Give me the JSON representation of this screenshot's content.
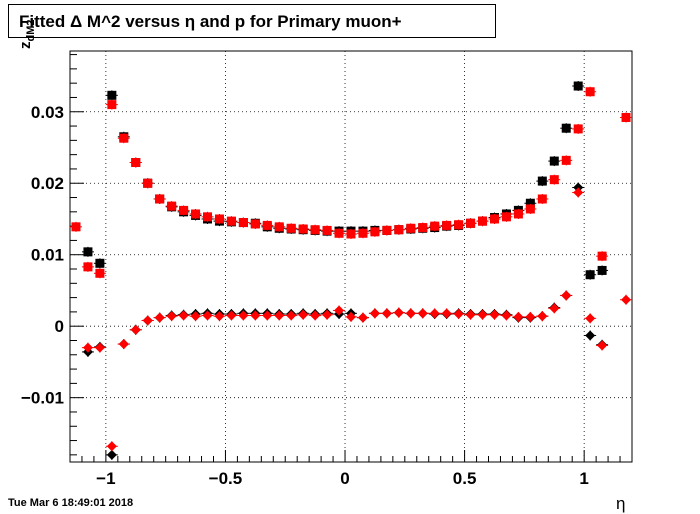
{
  "header": {
    "title": "Fitted Δ M^2 versus η and p for Primary muon+"
  },
  "footer": {
    "timestamp": "Tue Mar  6 18:49:01 2018"
  },
  "colors": {
    "series_black": "#000000",
    "series_red": "#ff0000",
    "grid": "#000000"
  },
  "chart_data": {
    "type": "scatter",
    "title": "Fitted Δ M^2 versus η and p for Primary muon+",
    "xlabel": "η",
    "ylabel_main": "z",
    "ylabel_sub": "dM2",
    "xlim": [
      -1.15,
      1.2
    ],
    "ylim": [
      -0.019,
      0.0385
    ],
    "grid": true,
    "x_ticks": [
      -1,
      -0.5,
      0,
      0.5,
      1
    ],
    "x_tick_labels": [
      "−1",
      "−0.5",
      "0",
      "0.5",
      "1"
    ],
    "y_ticks": [
      -0.01,
      0,
      0.01,
      0.02,
      0.03
    ],
    "y_tick_labels": [
      "−0.01",
      "0",
      "0.01",
      "0.02",
      "0.03"
    ],
    "series": [
      {
        "marker": "square",
        "color": "#000000",
        "x": [
          -1.075,
          -1.025,
          -0.975,
          -0.925,
          -0.875,
          -0.825,
          -0.775,
          -0.725,
          -0.675,
          -0.625,
          -0.575,
          -0.525,
          -0.475,
          -0.425,
          -0.375,
          -0.325,
          -0.275,
          -0.225,
          -0.175,
          -0.125,
          -0.075,
          -0.025,
          0.025,
          0.075,
          0.125,
          0.175,
          0.225,
          0.275,
          0.325,
          0.375,
          0.425,
          0.475,
          0.525,
          0.575,
          0.625,
          0.675,
          0.725,
          0.775,
          0.825,
          0.875,
          0.925,
          0.975,
          1.025,
          1.075
        ],
        "y": [
          0.0104,
          0.0088,
          0.0323,
          0.0265,
          0.0229,
          0.02,
          0.0178,
          0.0167,
          0.016,
          0.0155,
          0.015,
          0.0147,
          0.0146,
          0.0145,
          0.0144,
          0.0139,
          0.0137,
          0.0136,
          0.0135,
          0.0134,
          0.0133,
          0.0133,
          0.0133,
          0.0133,
          0.0134,
          0.0134,
          0.0135,
          0.0136,
          0.0137,
          0.0138,
          0.014,
          0.0141,
          0.0144,
          0.0147,
          0.0152,
          0.0157,
          0.0162,
          0.0172,
          0.0203,
          0.0231,
          0.0277,
          0.0336,
          0.0072,
          0.0078
        ]
      },
      {
        "marker": "square",
        "color": "#ff0000",
        "x": [
          -1.125,
          -1.075,
          -1.025,
          -0.975,
          -0.925,
          -0.875,
          -0.825,
          -0.775,
          -0.725,
          -0.675,
          -0.625,
          -0.575,
          -0.525,
          -0.475,
          -0.425,
          -0.375,
          -0.325,
          -0.275,
          -0.225,
          -0.175,
          -0.125,
          -0.075,
          -0.025,
          0.025,
          0.075,
          0.125,
          0.175,
          0.225,
          0.275,
          0.325,
          0.375,
          0.425,
          0.475,
          0.525,
          0.575,
          0.625,
          0.675,
          0.725,
          0.775,
          0.825,
          0.875,
          0.925,
          0.975,
          1.025,
          1.075,
          1.175
        ],
        "y": [
          0.0139,
          0.0083,
          0.0074,
          0.031,
          0.0263,
          0.0229,
          0.02,
          0.0178,
          0.0168,
          0.0162,
          0.0157,
          0.0153,
          0.015,
          0.0147,
          0.0145,
          0.0143,
          0.0141,
          0.0139,
          0.0137,
          0.0136,
          0.0135,
          0.0134,
          0.013,
          0.0129,
          0.013,
          0.0132,
          0.0134,
          0.0135,
          0.0137,
          0.0138,
          0.014,
          0.0141,
          0.0142,
          0.0144,
          0.0147,
          0.015,
          0.0153,
          0.0157,
          0.0164,
          0.0178,
          0.0205,
          0.0232,
          0.0276,
          0.0328,
          0.0098,
          0.0292
        ]
      },
      {
        "marker": "diamond",
        "color": "#000000",
        "x": [
          -1.075,
          -1.025,
          -0.975,
          -0.925,
          -0.875,
          -0.825,
          -0.775,
          -0.725,
          -0.675,
          -0.625,
          -0.575,
          -0.525,
          -0.475,
          -0.425,
          -0.375,
          -0.325,
          -0.275,
          -0.225,
          -0.175,
          -0.125,
          -0.075,
          -0.025,
          0.025,
          0.075,
          0.125,
          0.175,
          0.225,
          0.275,
          0.325,
          0.375,
          0.425,
          0.475,
          0.525,
          0.575,
          0.625,
          0.675,
          0.725,
          0.775,
          0.825,
          0.875,
          0.925,
          0.975,
          1.025,
          1.075
        ],
        "y": [
          -0.0036,
          -0.0029,
          -0.018,
          -0.0025,
          -0.0005,
          0.0008,
          0.0012,
          0.0015,
          0.0016,
          0.0017,
          0.0018,
          0.0017,
          0.0017,
          0.0018,
          0.0018,
          0.0018,
          0.0017,
          0.0017,
          0.0018,
          0.0017,
          0.0018,
          0.0017,
          0.0018,
          0.0012,
          0.0018,
          0.0018,
          0.0019,
          0.0018,
          0.0018,
          0.0017,
          0.0017,
          0.0018,
          0.0017,
          0.0017,
          0.0017,
          0.0016,
          0.0012,
          0.0012,
          0.0014,
          0.0026,
          0.0043,
          0.0194,
          -0.0013,
          -0.0026
        ]
      },
      {
        "marker": "diamond",
        "color": "#ff0000",
        "x": [
          -1.075,
          -1.025,
          -0.975,
          -0.925,
          -0.875,
          -0.825,
          -0.775,
          -0.725,
          -0.675,
          -0.625,
          -0.575,
          -0.525,
          -0.475,
          -0.425,
          -0.375,
          -0.325,
          -0.275,
          -0.225,
          -0.175,
          -0.125,
          -0.075,
          -0.025,
          0.025,
          0.075,
          0.125,
          0.175,
          0.225,
          0.275,
          0.325,
          0.375,
          0.425,
          0.475,
          0.525,
          0.575,
          0.625,
          0.675,
          0.725,
          0.775,
          0.825,
          0.875,
          0.925,
          0.975,
          1.025,
          1.075,
          1.175
        ],
        "y": [
          -0.003,
          -0.003,
          -0.0168,
          -0.0025,
          -0.0005,
          0.0008,
          0.0012,
          0.0014,
          0.0015,
          0.0014,
          0.0015,
          0.0014,
          0.0015,
          0.0015,
          0.0015,
          0.0015,
          0.0015,
          0.0015,
          0.0016,
          0.0015,
          0.0016,
          0.0022,
          0.0013,
          0.0012,
          0.0018,
          0.0018,
          0.0019,
          0.0018,
          0.0018,
          0.0018,
          0.0018,
          0.0017,
          0.0016,
          0.0016,
          0.0016,
          0.0015,
          0.0013,
          0.0013,
          0.0014,
          0.0025,
          0.0043,
          0.0187,
          0.0011,
          -0.0027,
          0.0037
        ]
      }
    ]
  }
}
